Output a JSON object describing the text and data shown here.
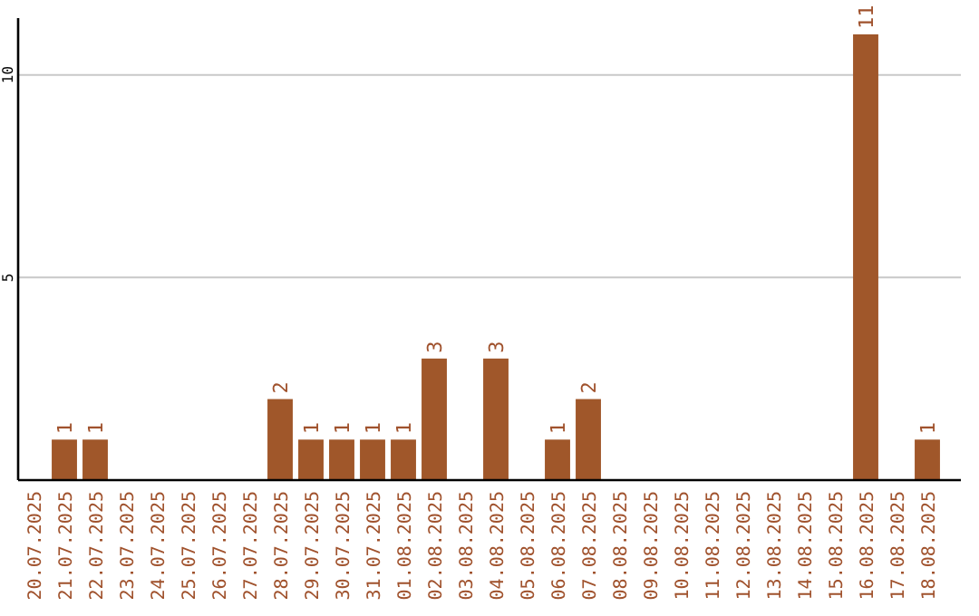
{
  "chart_data": {
    "type": "bar",
    "categories": [
      "20.07.2025",
      "21.07.2025",
      "22.07.2025",
      "23.07.2025",
      "24.07.2025",
      "25.07.2025",
      "26.07.2025",
      "27.07.2025",
      "28.07.2025",
      "29.07.2025",
      "30.07.2025",
      "31.07.2025",
      "01.08.2025",
      "02.08.2025",
      "03.08.2025",
      "04.08.2025",
      "05.08.2025",
      "06.08.2025",
      "07.08.2025",
      "08.08.2025",
      "09.08.2025",
      "10.08.2025",
      "11.08.2025",
      "12.08.2025",
      "13.08.2025",
      "14.08.2025",
      "15.08.2025",
      "16.08.2025",
      "17.08.2025",
      "18.08.2025"
    ],
    "values": [
      0,
      1,
      1,
      0,
      0,
      0,
      0,
      0,
      2,
      1,
      1,
      1,
      1,
      3,
      0,
      3,
      0,
      1,
      2,
      0,
      0,
      0,
      0,
      0,
      0,
      0,
      0,
      11,
      0,
      1
    ],
    "value_labels": [
      null,
      "1",
      "1",
      null,
      null,
      null,
      null,
      null,
      "2",
      "1",
      "1",
      "1",
      "1",
      "3",
      null,
      "3",
      null,
      "1",
      "2",
      null,
      null,
      null,
      null,
      null,
      null,
      null,
      null,
      "11",
      null,
      "1"
    ],
    "color": "#a0572a",
    "ylim": [
      0,
      11.4
    ],
    "yticks": [
      5,
      10
    ],
    "grid": "y"
  }
}
